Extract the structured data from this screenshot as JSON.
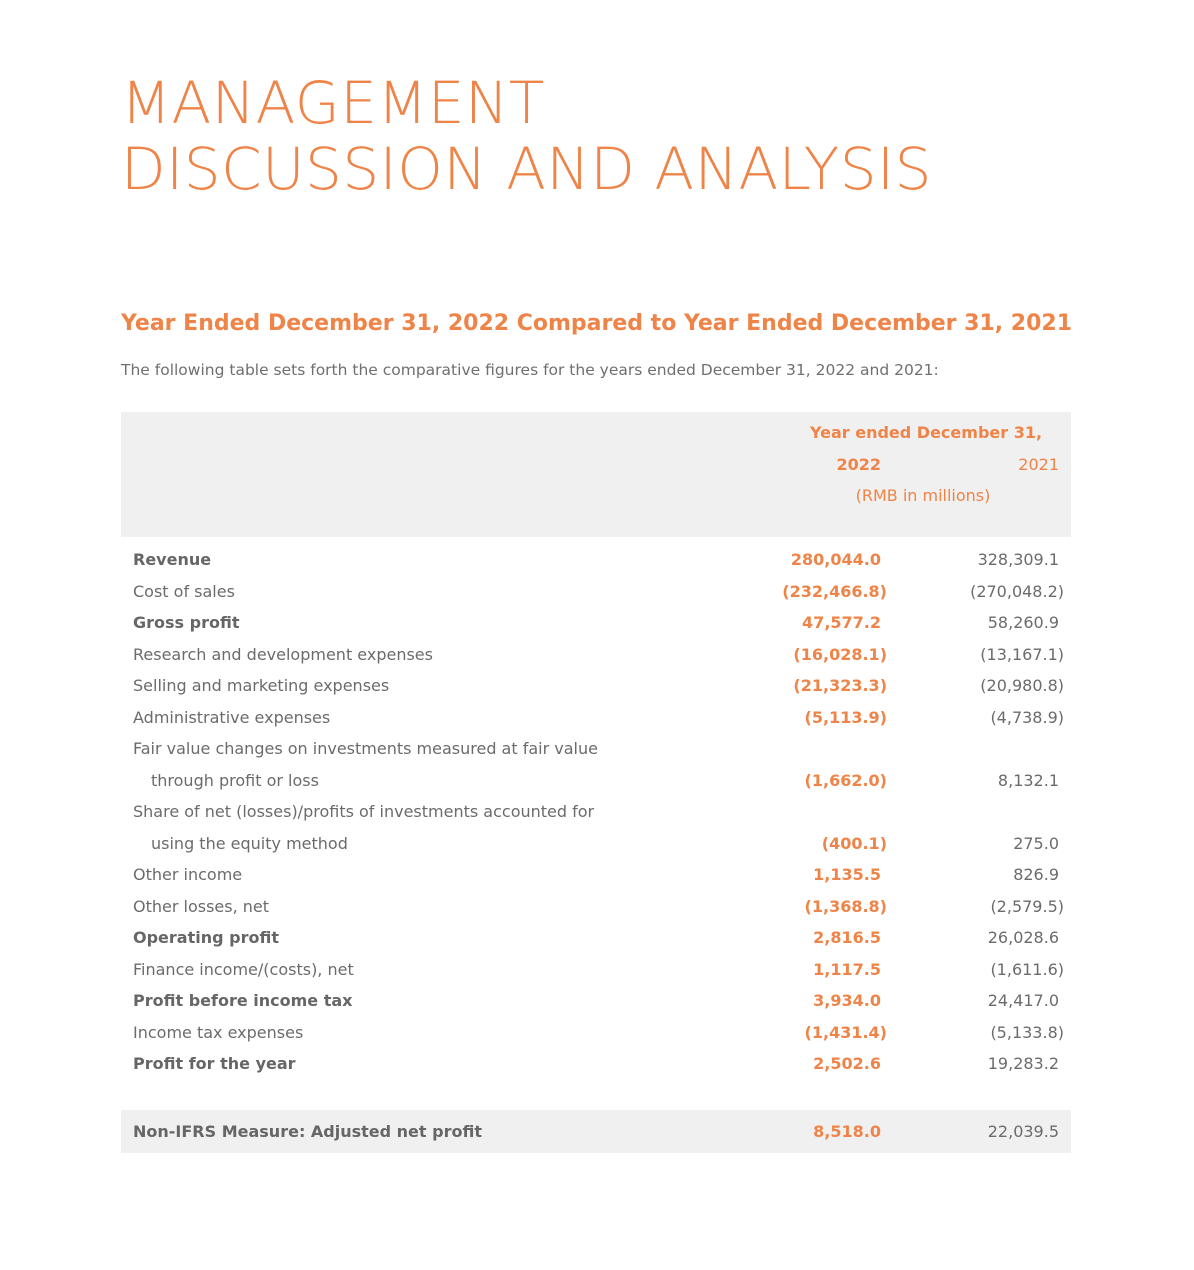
{
  "title": {
    "line1": "MANAGEMENT",
    "line2": "DISCUSSION AND ANALYSIS"
  },
  "section_heading": "Year Ended December 31, 2022 Compared to Year Ended December 31, 2021",
  "intro": "The following table sets forth the comparative figures for the years ended December 31, 2022 and 2021:",
  "colors": {
    "accent": "#ee8448",
    "text": "#6b6b6b",
    "band": "#f1f0f0"
  },
  "table": {
    "header": {
      "caption": "Year ended December 31,",
      "col_current": "2022",
      "col_prior": "2021",
      "unit": "(RMB in millions)"
    },
    "rows": [
      {
        "label": "Revenue",
        "current": "280,044.0",
        "prior": "328,309.1"
      },
      {
        "label": "Cost of sales",
        "current": "(232,466.8)",
        "prior": "(270,048.2)"
      },
      {
        "label": "Gross profit",
        "current": "47,577.2",
        "prior": "58,260.9"
      },
      {
        "label": "Research and development expenses",
        "current": "(16,028.1)",
        "prior": "(13,167.1)"
      },
      {
        "label": "Selling and marketing expenses",
        "current": "(21,323.3)",
        "prior": "(20,980.8)"
      },
      {
        "label": "Administrative expenses",
        "current": "(5,113.9)",
        "prior": "(4,738.9)"
      },
      {
        "label": "Fair value changes on investments measured at fair value",
        "label_cont": "through profit or loss",
        "current": "(1,662.0)",
        "prior": "8,132.1"
      },
      {
        "label": "Share of net (losses)/profits of investments accounted for",
        "label_cont": "using the equity method",
        "current": "(400.1)",
        "prior": "275.0"
      },
      {
        "label": "Other income",
        "current": "1,135.5",
        "prior": "826.9"
      },
      {
        "label": "Other losses, net",
        "current": "(1,368.8)",
        "prior": "(2,579.5)"
      },
      {
        "label": "Operating profit",
        "current": "2,816.5",
        "prior": "26,028.6"
      },
      {
        "label": "Finance income/(costs), net",
        "current": "1,117.5",
        "prior": "(1,611.6)"
      },
      {
        "label": "Profit before income tax",
        "current": "3,934.0",
        "prior": "24,417.0"
      },
      {
        "label": "Income tax expenses",
        "current": "(1,431.4)",
        "prior": "(5,133.8)"
      },
      {
        "label": "Profit for the year",
        "current": "2,502.6",
        "prior": "19,283.2"
      }
    ],
    "footer": {
      "label": "Non-IFRS Measure: Adjusted net profit",
      "current": "8,518.0",
      "prior": "22,039.5"
    }
  }
}
